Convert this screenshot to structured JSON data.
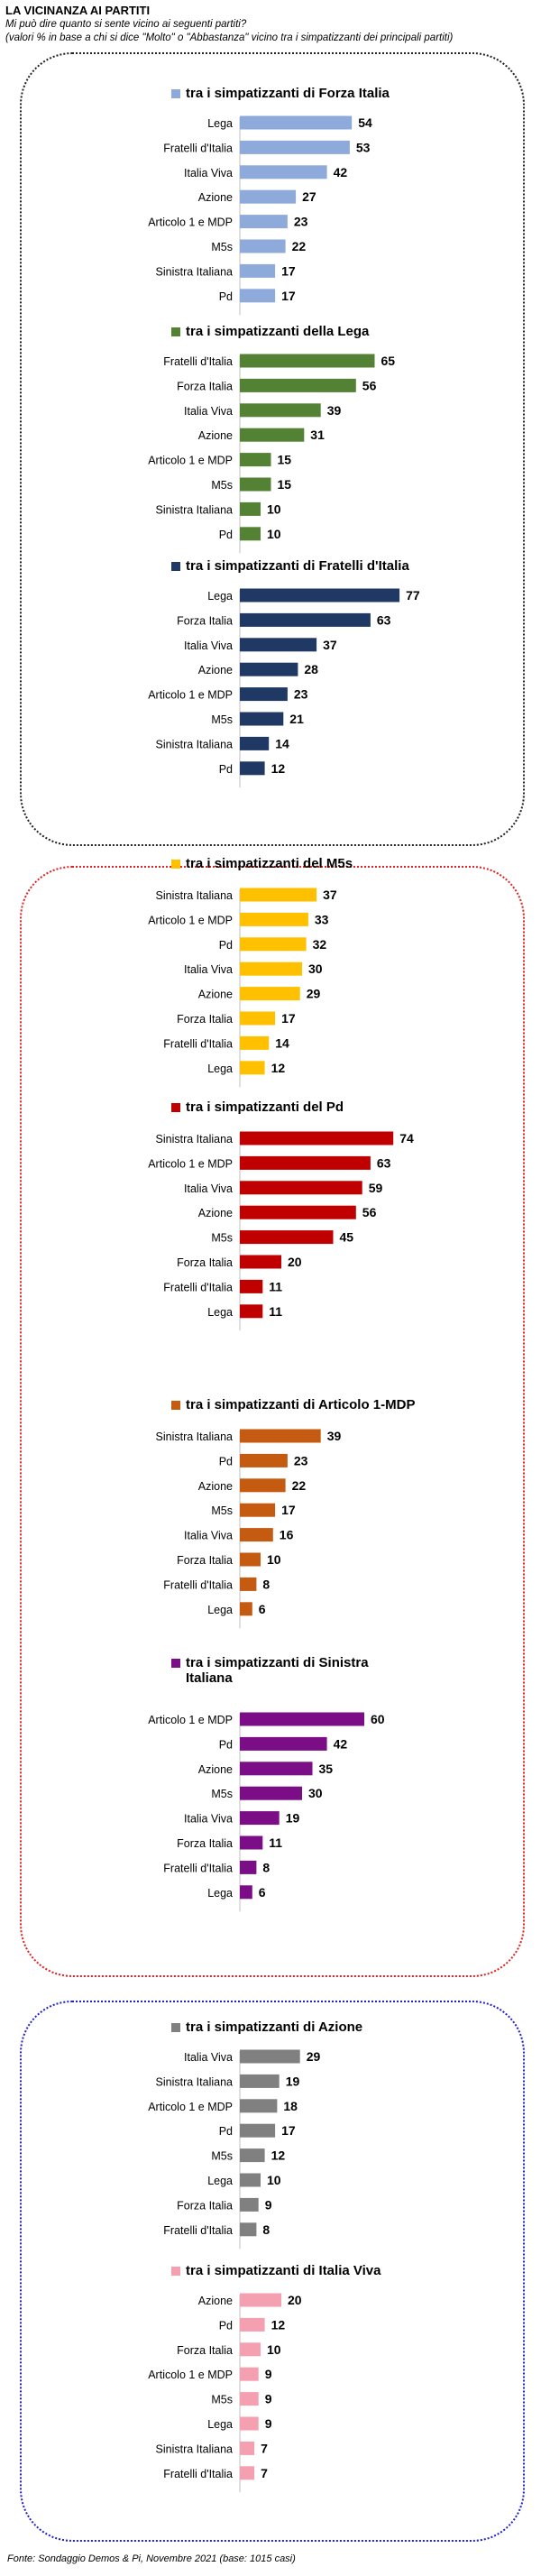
{
  "title": "LA VICINANZA AI PARTITI",
  "subtitle_line1": "Mi può dire quanto si sente vicino ai seguenti partiti?",
  "subtitle_line2": "(valori % in base a chi si dice \"Molto\" o \"Abbastanza\" vicino tra i simpatizzanti dei principali partiti)",
  "footer": "Fonte: Sondaggio Demos & Pi, Novembre 2021 (base: 1015 casi)",
  "chart_data": [
    {
      "type": "bar",
      "orientation": "horizontal",
      "title": "tra i simpatizzanti di Forza Italia",
      "color": "#8eaadb",
      "categories": [
        "Lega",
        "Fratelli d'Italia",
        "Italia Viva",
        "Azione",
        "Articolo 1 e MDP",
        "M5s",
        "Sinistra Italiana",
        "Pd"
      ],
      "values": [
        54,
        53,
        42,
        27,
        23,
        22,
        17,
        17
      ]
    },
    {
      "type": "bar",
      "orientation": "horizontal",
      "title": "tra i simpatizzanti della Lega",
      "color": "#548235",
      "categories": [
        "Fratelli d'Italia",
        "Forza Italia",
        "Italia Viva",
        "Azione",
        "Articolo 1 e MDP",
        "M5s",
        "Sinistra Italiana",
        "Pd"
      ],
      "values": [
        65,
        56,
        39,
        31,
        15,
        15,
        10,
        10
      ]
    },
    {
      "type": "bar",
      "orientation": "horizontal",
      "title": "tra i simpatizzanti di Fratelli d'Italia",
      "color": "#1f3864",
      "categories": [
        "Lega",
        "Forza Italia",
        "Italia Viva",
        "Azione",
        "Articolo 1 e MDP",
        "M5s",
        "Sinistra Italiana",
        "Pd"
      ],
      "values": [
        77,
        63,
        37,
        28,
        23,
        21,
        14,
        12
      ]
    },
    {
      "type": "bar",
      "orientation": "horizontal",
      "title": "tra i simpatizzanti del M5s",
      "color": "#ffc000",
      "categories": [
        "Sinistra Italiana",
        "Articolo 1 e MDP",
        "Pd",
        "Italia Viva",
        "Azione",
        "Forza Italia",
        "Fratelli d'Italia",
        "Lega"
      ],
      "values": [
        37,
        33,
        32,
        30,
        29,
        17,
        14,
        12
      ]
    },
    {
      "type": "bar",
      "orientation": "horizontal",
      "title": "tra i simpatizzanti del Pd",
      "color": "#c00000",
      "categories": [
        "Sinistra Italiana",
        "Articolo 1 e MDP",
        "Italia Viva",
        "Azione",
        "M5s",
        "Forza Italia",
        "Fratelli d'Italia",
        "Lega"
      ],
      "values": [
        74,
        63,
        59,
        56,
        45,
        20,
        11,
        11
      ]
    },
    {
      "type": "bar",
      "orientation": "horizontal",
      "title": "tra i simpatizzanti di Articolo 1-MDP",
      "color": "#c55a11",
      "categories": [
        "Sinistra Italiana",
        "Pd",
        "Azione",
        "M5s",
        "Italia Viva",
        "Forza Italia",
        "Fratelli d'Italia",
        "Lega"
      ],
      "values": [
        39,
        23,
        22,
        17,
        16,
        10,
        8,
        6
      ]
    },
    {
      "type": "bar",
      "orientation": "horizontal",
      "title_lines": [
        "tra i simpatizzanti di Sinistra",
        "Italiana"
      ],
      "color": "#7b0e87",
      "categories": [
        "Articolo 1 e MDP",
        "Pd",
        "Azione",
        "M5s",
        "Italia Viva",
        "Forza Italia",
        "Fratelli d'Italia",
        "Lega"
      ],
      "values": [
        60,
        42,
        35,
        30,
        19,
        11,
        8,
        6
      ]
    },
    {
      "type": "bar",
      "orientation": "horizontal",
      "title": "tra i simpatizzanti di Azione",
      "color": "#808080",
      "categories": [
        "Italia Viva",
        "Sinistra Italiana",
        "Articolo 1 e MDP",
        "Pd",
        "M5s",
        "Lega",
        "Forza Italia",
        "Fratelli d'Italia"
      ],
      "values": [
        29,
        19,
        18,
        17,
        12,
        10,
        9,
        8
      ]
    },
    {
      "type": "bar",
      "orientation": "horizontal",
      "title": "tra i simpatizzanti di Italia Viva",
      "color": "#f4a0b0",
      "categories": [
        "Azione",
        "Pd",
        "Forza Italia",
        "Articolo 1 e MDP",
        "M5s",
        "Lega",
        "Sinistra Italiana",
        "Fratelli d'Italia"
      ],
      "values": [
        20,
        12,
        10,
        9,
        9,
        9,
        7,
        7
      ]
    }
  ]
}
